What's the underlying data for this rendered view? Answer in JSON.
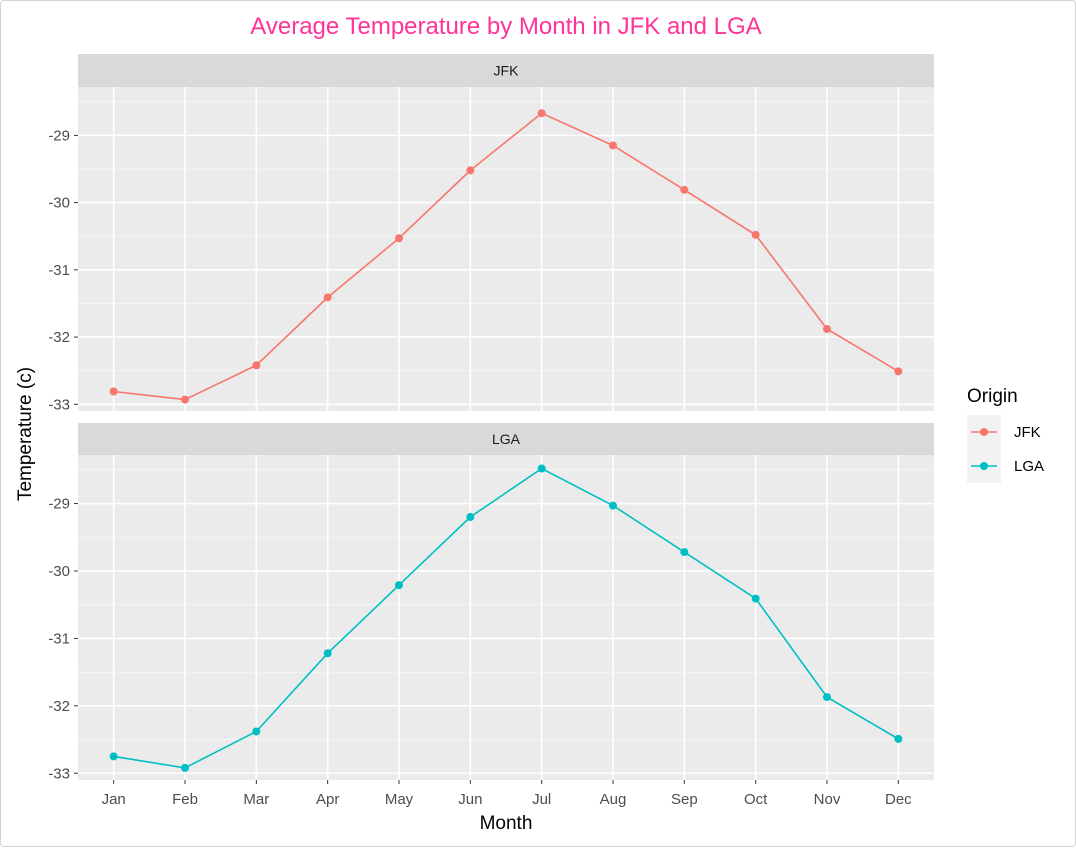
{
  "chart_data": {
    "type": "line",
    "title": "Average Temperature by Month in JFK and LGA",
    "xlabel": "Month",
    "ylabel": "Temperature (c)",
    "categories": [
      "Jan",
      "Feb",
      "Mar",
      "Apr",
      "May",
      "Jun",
      "Jul",
      "Aug",
      "Sep",
      "Oct",
      "Nov",
      "Dec"
    ],
    "ylim": [
      -33.1,
      -28.28
    ],
    "yticks": [
      -29,
      -30,
      -31,
      -32,
      -33
    ],
    "ytick_labels": [
      "-29",
      "-30",
      "-31",
      "-32",
      "-33"
    ],
    "grid": true,
    "facets": [
      "JFK",
      "LGA"
    ],
    "legend": {
      "title": "Origin",
      "position": "right",
      "entries": [
        "JFK",
        "LGA"
      ]
    },
    "series": [
      {
        "name": "JFK",
        "color": "#f8766d",
        "values": [
          -32.81,
          -32.93,
          -32.42,
          -31.41,
          -30.53,
          -29.52,
          -28.67,
          -29.15,
          -29.81,
          -30.48,
          -31.88,
          -32.51
        ]
      },
      {
        "name": "LGA",
        "color": "#00bfc4",
        "values": [
          -32.75,
          -32.92,
          -32.38,
          -31.22,
          -30.21,
          -29.2,
          -28.48,
          -29.03,
          -29.72,
          -30.41,
          -31.87,
          -32.49
        ]
      }
    ]
  }
}
